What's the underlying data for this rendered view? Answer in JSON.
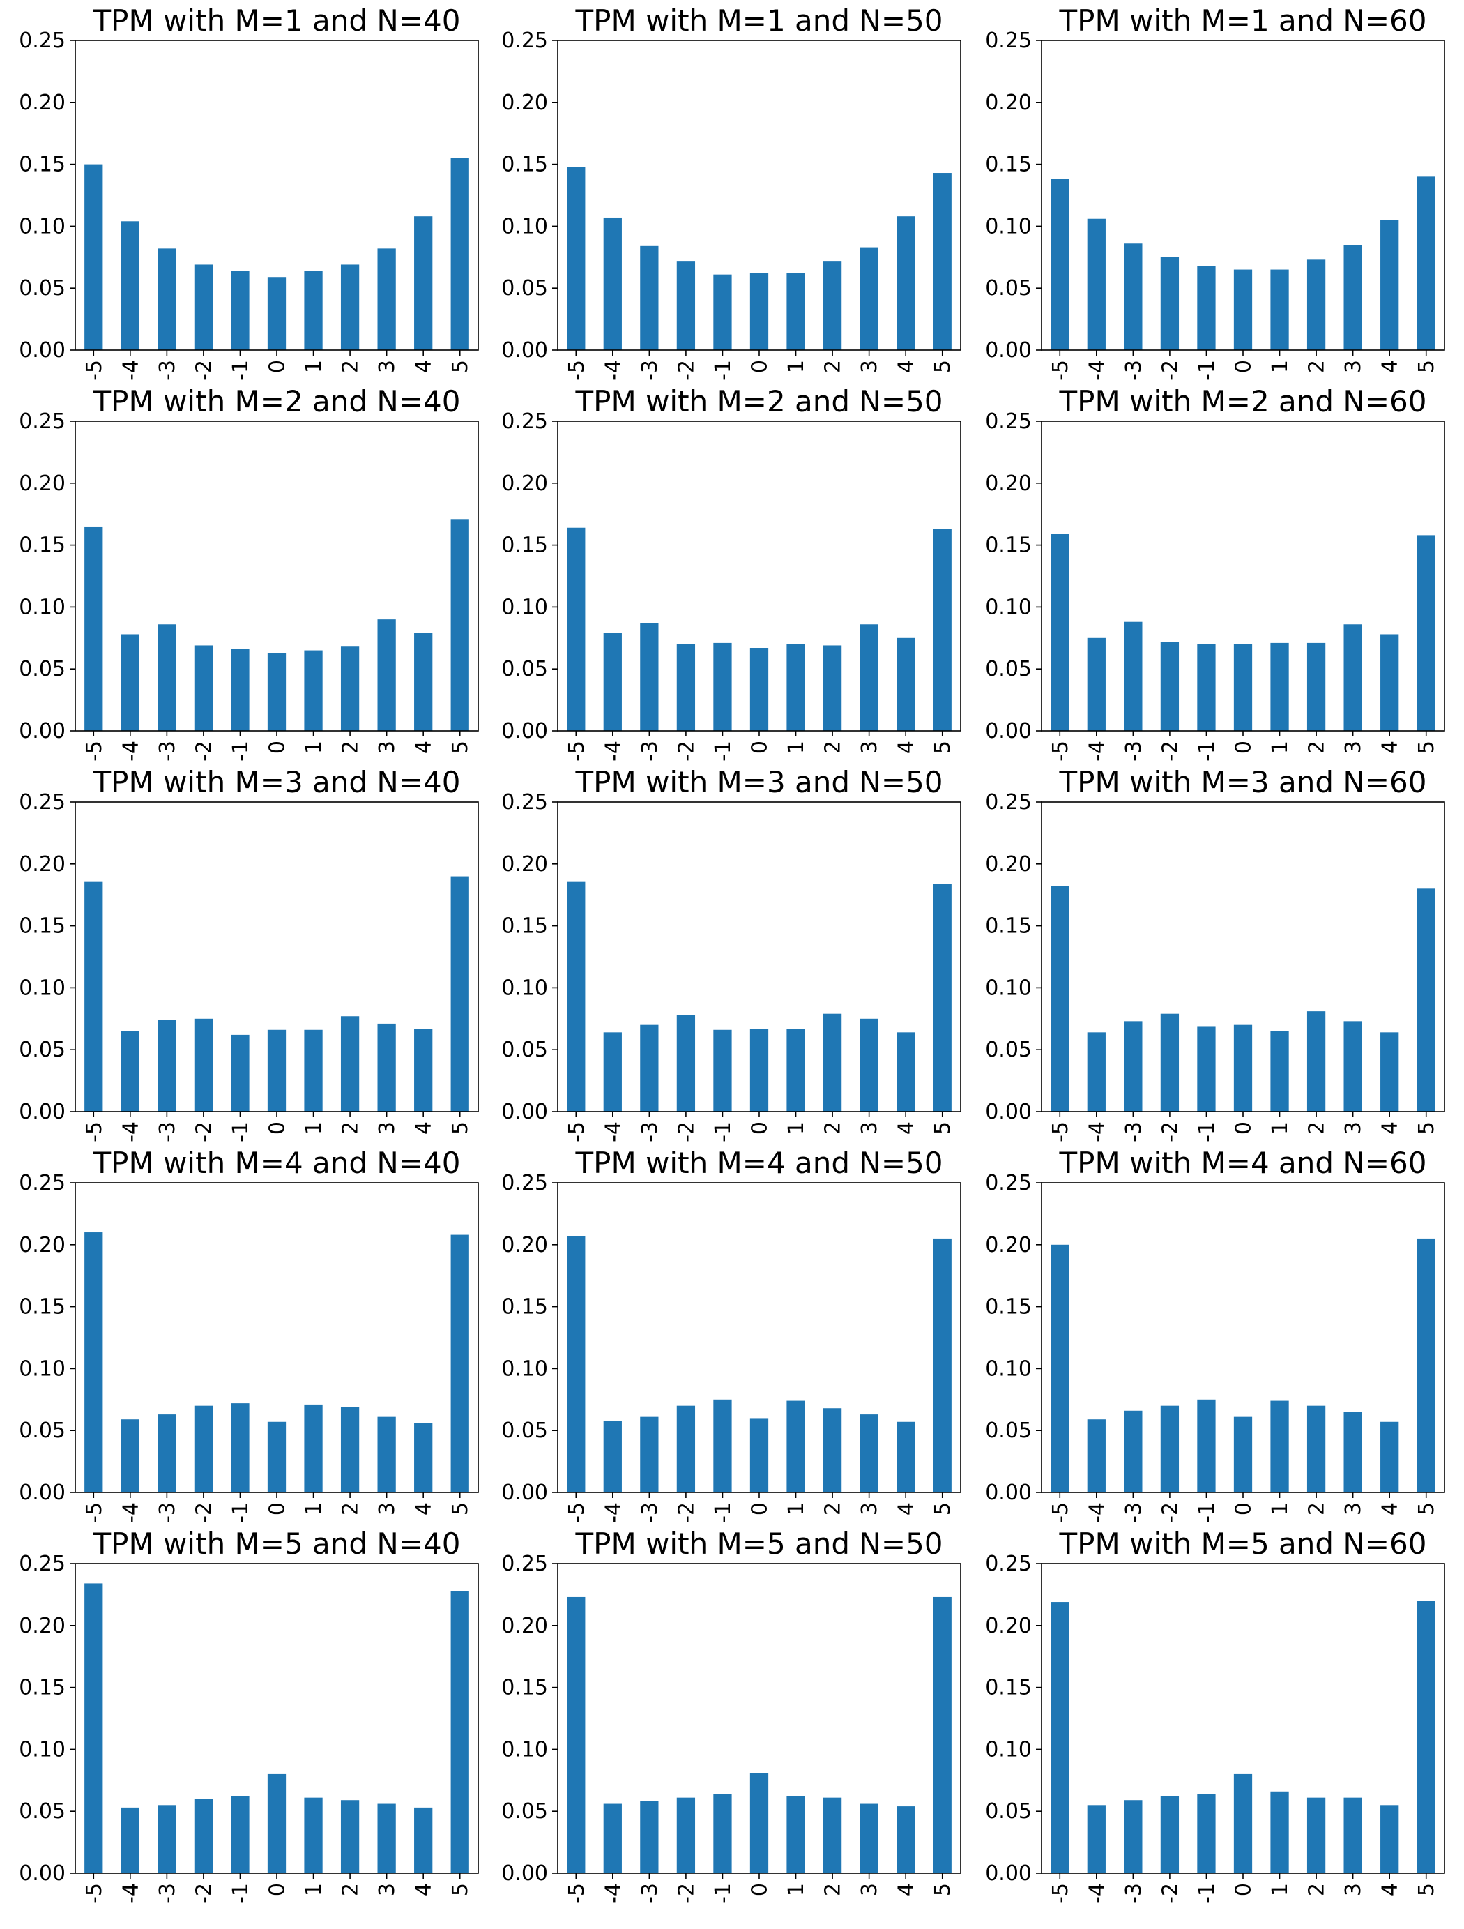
{
  "colors": {
    "bar": "#1f77b4",
    "axis": "#000000",
    "background": "#ffffff"
  },
  "chart_data": [
    {
      "type": "bar",
      "title": "TPM with M=1 and N=40",
      "categories": [
        "-5",
        "-4",
        "-3",
        "-2",
        "-1",
        "0",
        "1",
        "2",
        "3",
        "4",
        "5"
      ],
      "values": [
        0.15,
        0.104,
        0.082,
        0.069,
        0.064,
        0.059,
        0.064,
        0.069,
        0.082,
        0.108,
        0.155
      ],
      "ylim": [
        0,
        0.25
      ],
      "yticks": [
        "0.00",
        "0.05",
        "0.10",
        "0.15",
        "0.20",
        "0.25"
      ],
      "xlabel": "",
      "ylabel": ""
    },
    {
      "type": "bar",
      "title": "TPM with M=1 and N=50",
      "categories": [
        "-5",
        "-4",
        "-3",
        "-2",
        "-1",
        "0",
        "1",
        "2",
        "3",
        "4",
        "5"
      ],
      "values": [
        0.148,
        0.107,
        0.084,
        0.072,
        0.061,
        0.062,
        0.062,
        0.072,
        0.083,
        0.108,
        0.143
      ],
      "ylim": [
        0,
        0.25
      ],
      "yticks": [
        "0.00",
        "0.05",
        "0.10",
        "0.15",
        "0.20",
        "0.25"
      ],
      "xlabel": "",
      "ylabel": ""
    },
    {
      "type": "bar",
      "title": "TPM with M=1 and N=60",
      "categories": [
        "-5",
        "-4",
        "-3",
        "-2",
        "-1",
        "0",
        "1",
        "2",
        "3",
        "4",
        "5"
      ],
      "values": [
        0.138,
        0.106,
        0.086,
        0.075,
        0.068,
        0.065,
        0.065,
        0.073,
        0.085,
        0.105,
        0.14
      ],
      "ylim": [
        0,
        0.25
      ],
      "yticks": [
        "0.00",
        "0.05",
        "0.10",
        "0.15",
        "0.20",
        "0.25"
      ],
      "xlabel": "",
      "ylabel": ""
    },
    {
      "type": "bar",
      "title": "TPM with M=2 and N=40",
      "categories": [
        "-5",
        "-4",
        "-3",
        "-2",
        "-1",
        "0",
        "1",
        "2",
        "3",
        "4",
        "5"
      ],
      "values": [
        0.165,
        0.078,
        0.086,
        0.069,
        0.066,
        0.063,
        0.065,
        0.068,
        0.09,
        0.079,
        0.171
      ],
      "ylim": [
        0,
        0.25
      ],
      "yticks": [
        "0.00",
        "0.05",
        "0.10",
        "0.15",
        "0.20",
        "0.25"
      ],
      "xlabel": "",
      "ylabel": ""
    },
    {
      "type": "bar",
      "title": "TPM with M=2 and N=50",
      "categories": [
        "-5",
        "-4",
        "-3",
        "-2",
        "-1",
        "0",
        "1",
        "2",
        "3",
        "4",
        "5"
      ],
      "values": [
        0.164,
        0.079,
        0.087,
        0.07,
        0.071,
        0.067,
        0.07,
        0.069,
        0.086,
        0.075,
        0.163
      ],
      "ylim": [
        0,
        0.25
      ],
      "yticks": [
        "0.00",
        "0.05",
        "0.10",
        "0.15",
        "0.20",
        "0.25"
      ],
      "xlabel": "",
      "ylabel": ""
    },
    {
      "type": "bar",
      "title": "TPM with M=2 and N=60",
      "categories": [
        "-5",
        "-4",
        "-3",
        "-2",
        "-1",
        "0",
        "1",
        "2",
        "3",
        "4",
        "5"
      ],
      "values": [
        0.159,
        0.075,
        0.088,
        0.072,
        0.07,
        0.07,
        0.071,
        0.071,
        0.086,
        0.078,
        0.158
      ],
      "ylim": [
        0,
        0.25
      ],
      "yticks": [
        "0.00",
        "0.05",
        "0.10",
        "0.15",
        "0.20",
        "0.25"
      ],
      "xlabel": "",
      "ylabel": ""
    },
    {
      "type": "bar",
      "title": "TPM with M=3 and N=40",
      "categories": [
        "-5",
        "-4",
        "-3",
        "-2",
        "-1",
        "0",
        "1",
        "2",
        "3",
        "4",
        "5"
      ],
      "values": [
        0.186,
        0.065,
        0.074,
        0.075,
        0.062,
        0.066,
        0.066,
        0.077,
        0.071,
        0.067,
        0.19
      ],
      "ylim": [
        0,
        0.25
      ],
      "yticks": [
        "0.00",
        "0.05",
        "0.10",
        "0.15",
        "0.20",
        "0.25"
      ],
      "xlabel": "",
      "ylabel": ""
    },
    {
      "type": "bar",
      "title": "TPM with M=3 and N=50",
      "categories": [
        "-5",
        "-4",
        "-3",
        "-2",
        "-1",
        "0",
        "1",
        "2",
        "3",
        "4",
        "5"
      ],
      "values": [
        0.186,
        0.064,
        0.07,
        0.078,
        0.066,
        0.067,
        0.067,
        0.079,
        0.075,
        0.064,
        0.184
      ],
      "ylim": [
        0,
        0.25
      ],
      "yticks": [
        "0.00",
        "0.05",
        "0.10",
        "0.15",
        "0.20",
        "0.25"
      ],
      "xlabel": "",
      "ylabel": ""
    },
    {
      "type": "bar",
      "title": "TPM with M=3 and N=60",
      "categories": [
        "-5",
        "-4",
        "-3",
        "-2",
        "-1",
        "0",
        "1",
        "2",
        "3",
        "4",
        "5"
      ],
      "values": [
        0.182,
        0.064,
        0.073,
        0.079,
        0.069,
        0.07,
        0.065,
        0.081,
        0.073,
        0.064,
        0.18
      ],
      "ylim": [
        0,
        0.25
      ],
      "yticks": [
        "0.00",
        "0.05",
        "0.10",
        "0.15",
        "0.20",
        "0.25"
      ],
      "xlabel": "",
      "ylabel": ""
    },
    {
      "type": "bar",
      "title": "TPM with M=4 and N=40",
      "categories": [
        "-5",
        "-4",
        "-3",
        "-2",
        "-1",
        "0",
        "1",
        "2",
        "3",
        "4",
        "5"
      ],
      "values": [
        0.21,
        0.059,
        0.063,
        0.07,
        0.072,
        0.057,
        0.071,
        0.069,
        0.061,
        0.056,
        0.208
      ],
      "ylim": [
        0,
        0.25
      ],
      "yticks": [
        "0.00",
        "0.05",
        "0.10",
        "0.15",
        "0.20",
        "0.25"
      ],
      "xlabel": "",
      "ylabel": ""
    },
    {
      "type": "bar",
      "title": "TPM with M=4 and N=50",
      "categories": [
        "-5",
        "-4",
        "-3",
        "-2",
        "-1",
        "0",
        "1",
        "2",
        "3",
        "4",
        "5"
      ],
      "values": [
        0.207,
        0.058,
        0.061,
        0.07,
        0.075,
        0.06,
        0.074,
        0.068,
        0.063,
        0.057,
        0.205
      ],
      "ylim": [
        0,
        0.25
      ],
      "yticks": [
        "0.00",
        "0.05",
        "0.10",
        "0.15",
        "0.20",
        "0.25"
      ],
      "xlabel": "",
      "ylabel": ""
    },
    {
      "type": "bar",
      "title": "TPM with M=4 and N=60",
      "categories": [
        "-5",
        "-4",
        "-3",
        "-2",
        "-1",
        "0",
        "1",
        "2",
        "3",
        "4",
        "5"
      ],
      "values": [
        0.2,
        0.059,
        0.066,
        0.07,
        0.075,
        0.061,
        0.074,
        0.07,
        0.065,
        0.057,
        0.205
      ],
      "ylim": [
        0,
        0.25
      ],
      "yticks": [
        "0.00",
        "0.05",
        "0.10",
        "0.15",
        "0.20",
        "0.25"
      ],
      "xlabel": "",
      "ylabel": ""
    },
    {
      "type": "bar",
      "title": "TPM with M=5 and N=40",
      "categories": [
        "-5",
        "-4",
        "-3",
        "-2",
        "-1",
        "0",
        "1",
        "2",
        "3",
        "4",
        "5"
      ],
      "values": [
        0.234,
        0.053,
        0.055,
        0.06,
        0.062,
        0.08,
        0.061,
        0.059,
        0.056,
        0.053,
        0.228
      ],
      "ylim": [
        0,
        0.25
      ],
      "yticks": [
        "0.00",
        "0.05",
        "0.10",
        "0.15",
        "0.20",
        "0.25"
      ],
      "xlabel": "",
      "ylabel": ""
    },
    {
      "type": "bar",
      "title": "TPM with M=5 and N=50",
      "categories": [
        "-5",
        "-4",
        "-3",
        "-2",
        "-1",
        "0",
        "1",
        "2",
        "3",
        "4",
        "5"
      ],
      "values": [
        0.223,
        0.056,
        0.058,
        0.061,
        0.064,
        0.081,
        0.062,
        0.061,
        0.056,
        0.054,
        0.223
      ],
      "ylim": [
        0,
        0.25
      ],
      "yticks": [
        "0.00",
        "0.05",
        "0.10",
        "0.15",
        "0.20",
        "0.25"
      ],
      "xlabel": "",
      "ylabel": ""
    },
    {
      "type": "bar",
      "title": "TPM with M=5 and N=60",
      "categories": [
        "-5",
        "-4",
        "-3",
        "-2",
        "-1",
        "0",
        "1",
        "2",
        "3",
        "4",
        "5"
      ],
      "values": [
        0.219,
        0.055,
        0.059,
        0.062,
        0.064,
        0.08,
        0.066,
        0.061,
        0.061,
        0.055,
        0.22
      ],
      "ylim": [
        0,
        0.25
      ],
      "yticks": [
        "0.00",
        "0.05",
        "0.10",
        "0.15",
        "0.20",
        "0.25"
      ],
      "xlabel": "",
      "ylabel": ""
    }
  ]
}
